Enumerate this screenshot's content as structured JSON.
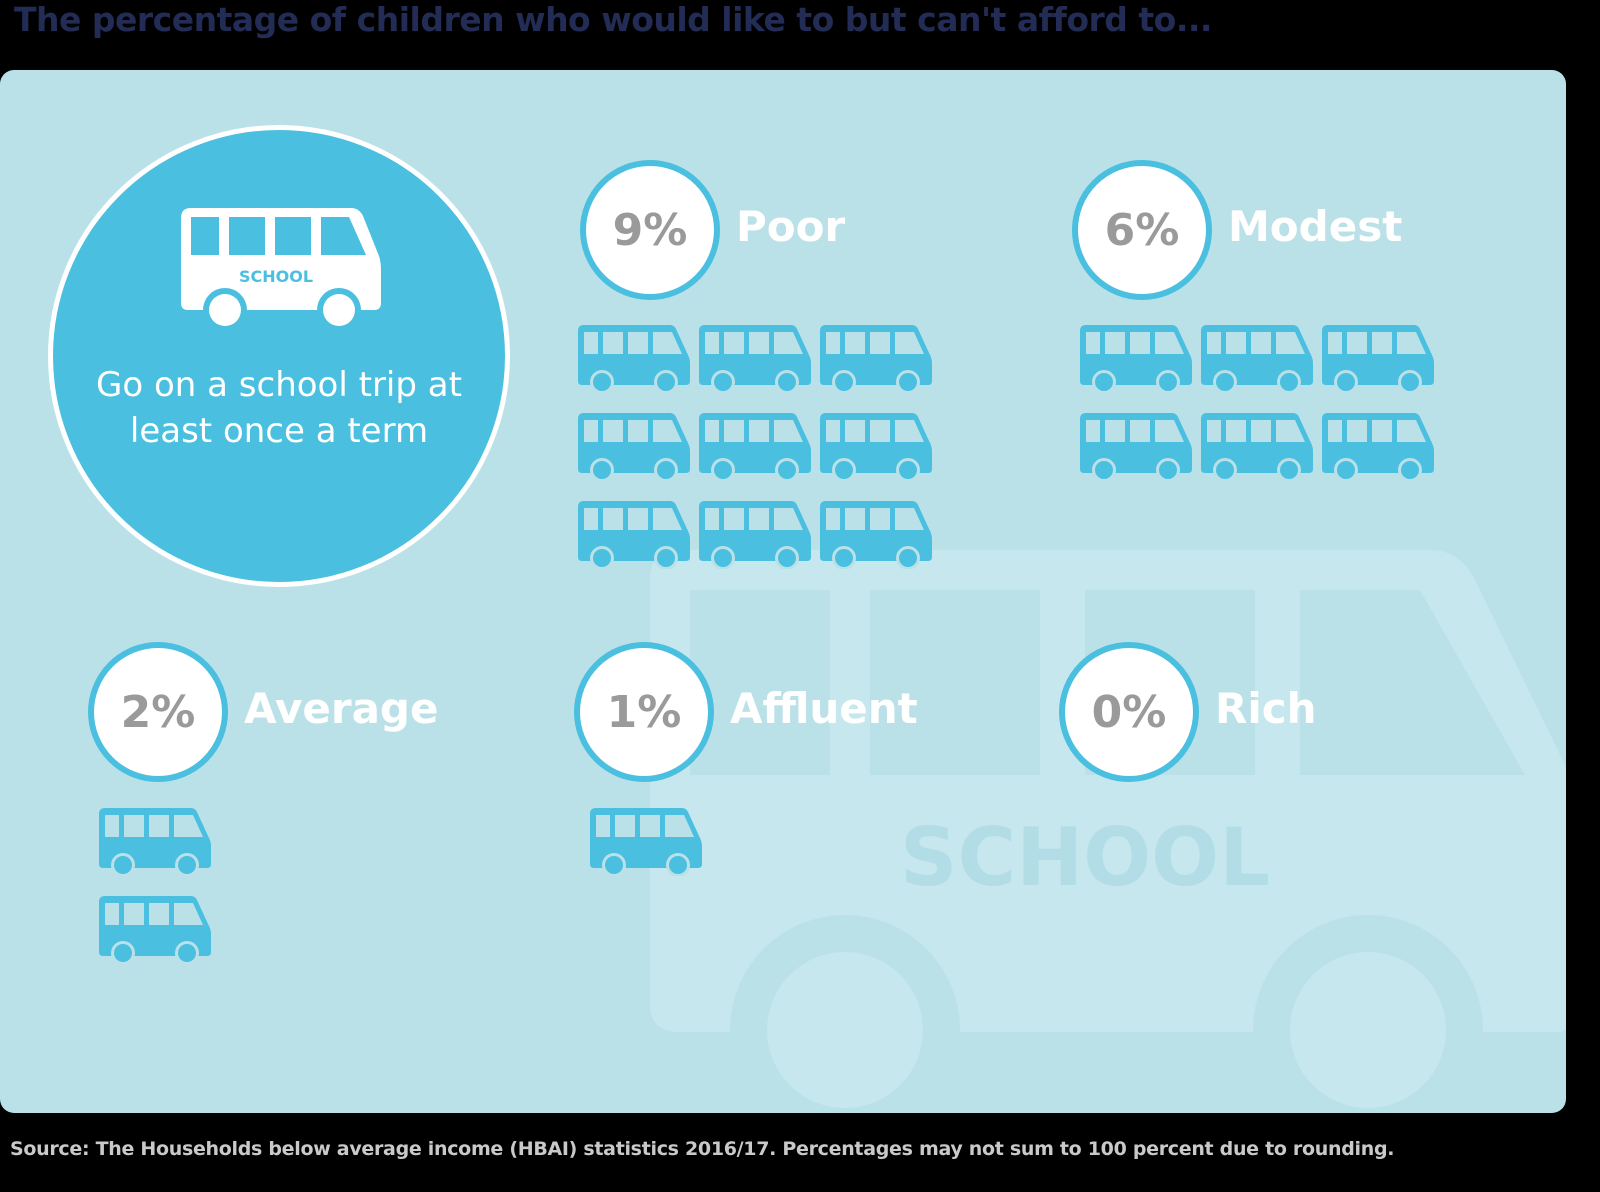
{
  "title": "The percentage of children who would like to but can't afford to...",
  "hero": {
    "icon": "school-bus-icon",
    "bus_text": "SCHOOL",
    "text": "Go on a school trip at least once a term"
  },
  "background_bus_text": "SCHOOL",
  "colors": {
    "accent": "#4abfdf",
    "panel": "#bbe1e8",
    "title": "#222c55",
    "percent_text": "#9a9a9a"
  },
  "chart_data": {
    "type": "pictogram",
    "title": "The percentage of children who would like to but can't afford to...",
    "subtitle": "Go on a school trip at least once a term",
    "unit_icon": "bus-icon",
    "categories": [
      "Poor",
      "Modest",
      "Average",
      "Affluent",
      "Rich"
    ],
    "values": [
      9,
      6,
      2,
      1,
      0
    ],
    "value_labels": [
      "9%",
      "6%",
      "2%",
      "1%",
      "0%"
    ]
  },
  "source": "Source: The Households below average income (HBAI) statistics 2016/17. Percentages may not sum to 100 percent due to rounding."
}
